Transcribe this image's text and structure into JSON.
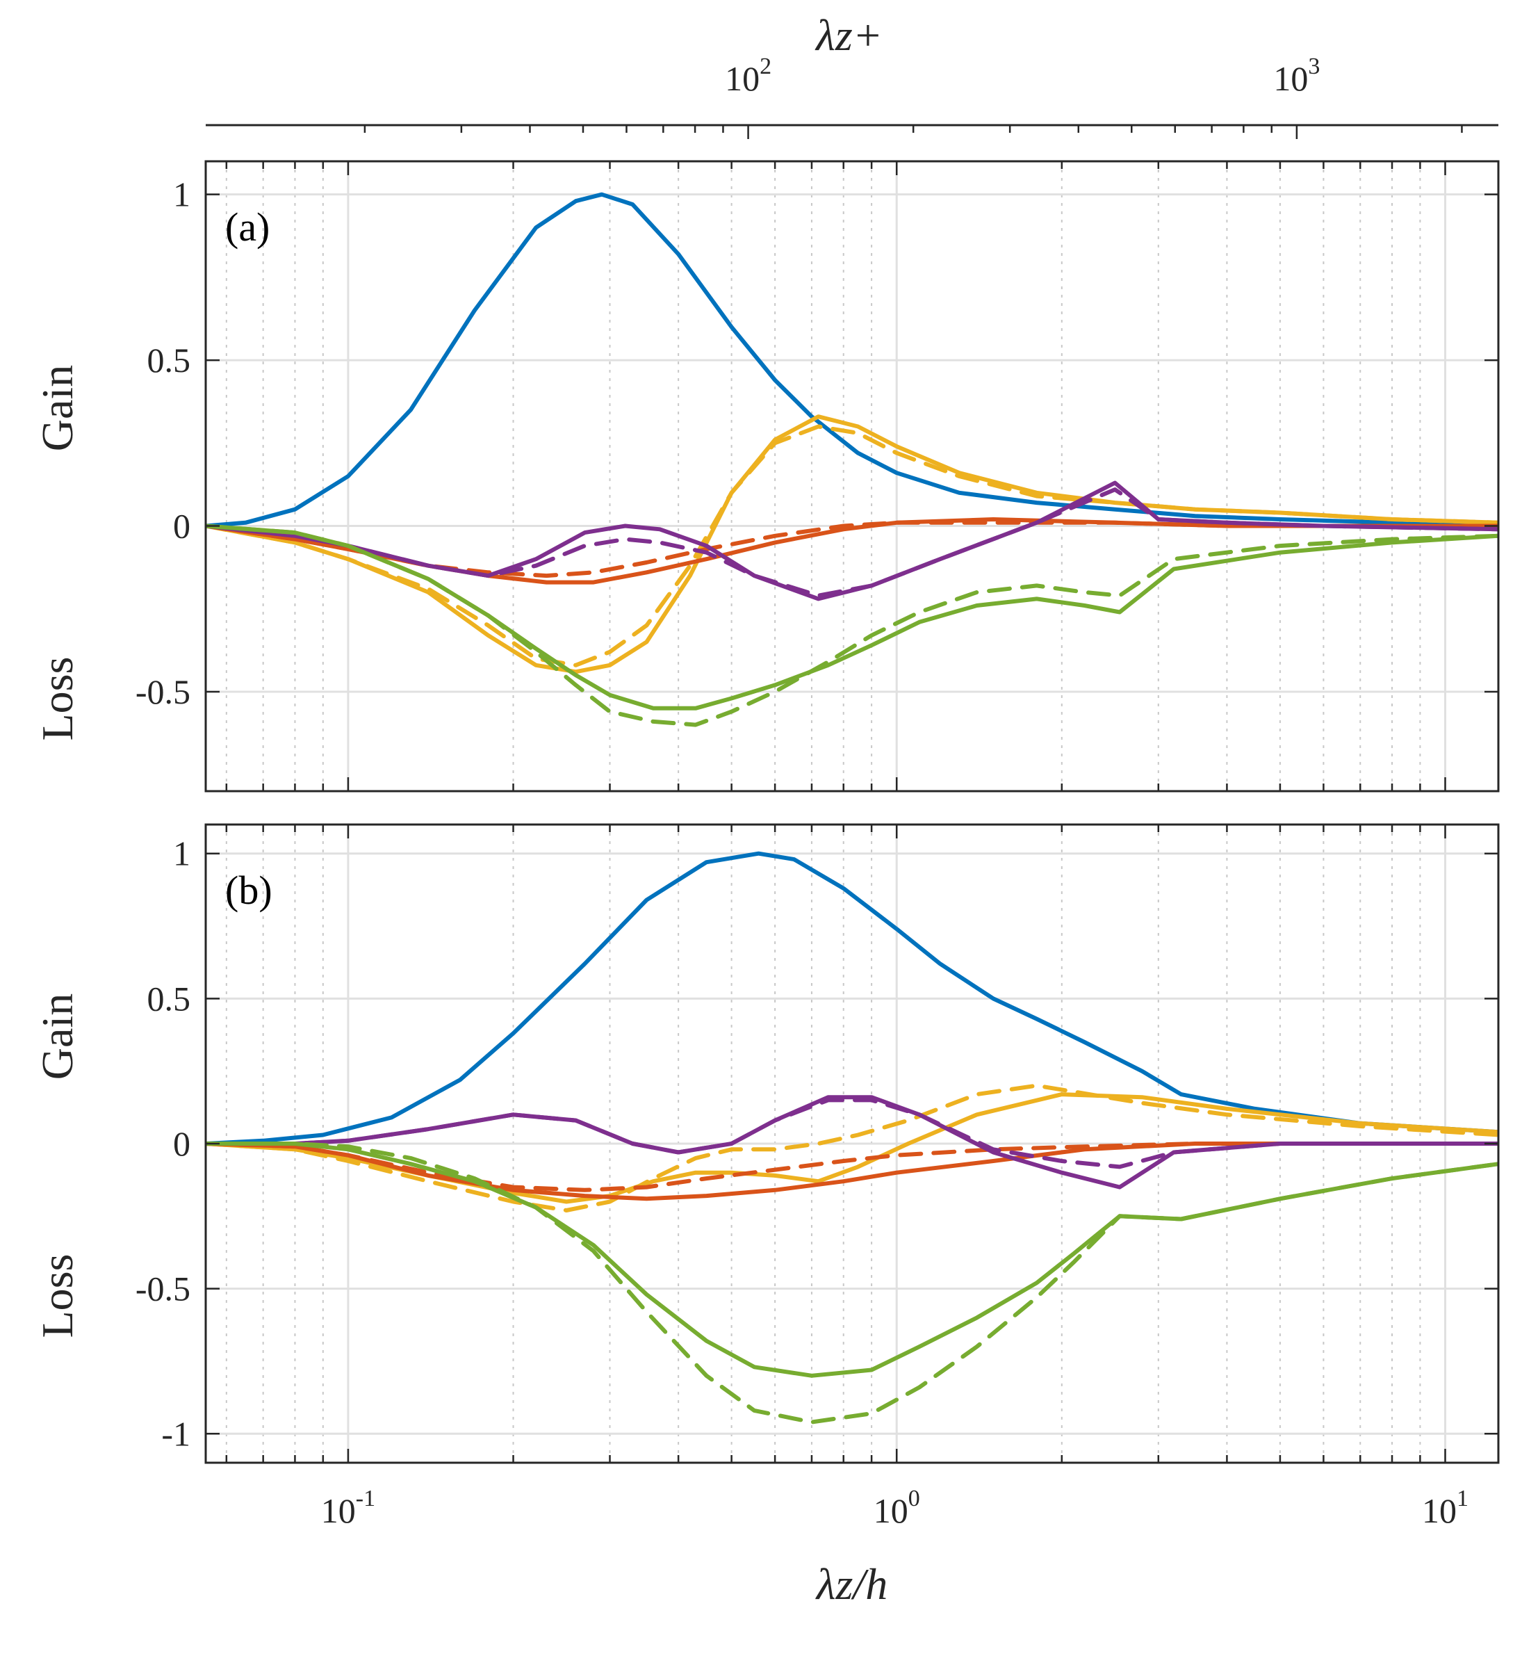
{
  "chart_data": {
    "type": "line",
    "x_scale": "log",
    "xlim": [
      0.055,
      12.5
    ],
    "x_top_label": "λz+",
    "x_top_ticks": [
      {
        "value": 100,
        "base": "10",
        "exp": "2"
      },
      {
        "value": 1000,
        "base": "10",
        "exp": "3"
      }
    ],
    "x_top_scale_factor": 186.5,
    "xlabel": "λz/h",
    "x_bottom_ticks": [
      {
        "value": 0.1,
        "base": "10",
        "exp": "-1"
      },
      {
        "value": 1,
        "base": "10",
        "exp": "0"
      },
      {
        "value": 10,
        "base": "10",
        "exp": "1"
      }
    ],
    "ylabel_top": "Gain",
    "ylabel_bottom": "Loss",
    "grid": true,
    "colors": {
      "blue": "#0072BD",
      "orange": "#EDB120",
      "red": "#D95319",
      "purple": "#7E2F8E",
      "green": "#77AC30"
    },
    "panels": [
      {
        "label": "(a)",
        "ylim": [
          -0.8,
          1.1
        ],
        "yticks": [
          1,
          0.5,
          0,
          -0.5
        ],
        "ytick_labels": [
          "1",
          "0.5",
          "0",
          "-0.5"
        ],
        "series": [
          {
            "name": "blue-solid",
            "color": "blue",
            "dash": false,
            "x": [
              0.055,
              0.065,
              0.08,
              0.1,
              0.13,
              0.17,
              0.22,
              0.26,
              0.29,
              0.33,
              0.4,
              0.5,
              0.6,
              0.7,
              0.85,
              1.0,
              1.3,
              1.8,
              2.5,
              3.5,
              5,
              8,
              12.5
            ],
            "y": [
              0.0,
              0.01,
              0.05,
              0.15,
              0.35,
              0.65,
              0.9,
              0.98,
              1.0,
              0.97,
              0.82,
              0.6,
              0.44,
              0.33,
              0.22,
              0.16,
              0.1,
              0.07,
              0.05,
              0.03,
              0.02,
              0.01,
              0.0
            ]
          },
          {
            "name": "orange-solid",
            "color": "orange",
            "dash": false,
            "x": [
              0.055,
              0.08,
              0.1,
              0.14,
              0.18,
              0.22,
              0.26,
              0.3,
              0.35,
              0.42,
              0.5,
              0.6,
              0.72,
              0.85,
              1.0,
              1.3,
              1.8,
              2.5,
              3.5,
              5,
              8,
              12.5
            ],
            "y": [
              0.0,
              -0.05,
              -0.1,
              -0.2,
              -0.33,
              -0.42,
              -0.44,
              -0.42,
              -0.35,
              -0.15,
              0.1,
              0.26,
              0.33,
              0.3,
              0.24,
              0.16,
              0.1,
              0.07,
              0.05,
              0.04,
              0.02,
              0.01
            ]
          },
          {
            "name": "orange-dashed",
            "color": "orange",
            "dash": true,
            "x": [
              0.055,
              0.08,
              0.1,
              0.14,
              0.18,
              0.22,
              0.26,
              0.3,
              0.35,
              0.42,
              0.5,
              0.6,
              0.72,
              0.85,
              1.0,
              1.3,
              1.8,
              2.5,
              3.5,
              5,
              8,
              12.5
            ],
            "y": [
              0.0,
              -0.05,
              -0.1,
              -0.19,
              -0.3,
              -0.4,
              -0.42,
              -0.38,
              -0.3,
              -0.12,
              0.1,
              0.25,
              0.3,
              0.28,
              0.22,
              0.15,
              0.09,
              0.07,
              0.05,
              0.04,
              0.02,
              0.01
            ]
          },
          {
            "name": "red-solid",
            "color": "red",
            "dash": false,
            "x": [
              0.055,
              0.08,
              0.1,
              0.14,
              0.18,
              0.23,
              0.28,
              0.35,
              0.45,
              0.6,
              0.8,
              1.0,
              1.5,
              2.5,
              4,
              12.5
            ],
            "y": [
              0.0,
              -0.04,
              -0.07,
              -0.12,
              -0.15,
              -0.17,
              -0.17,
              -0.14,
              -0.1,
              -0.05,
              -0.01,
              0.01,
              0.02,
              0.01,
              0.0,
              0.0
            ]
          },
          {
            "name": "red-dashed",
            "color": "red",
            "dash": true,
            "x": [
              0.055,
              0.08,
              0.1,
              0.14,
              0.18,
              0.23,
              0.28,
              0.35,
              0.45,
              0.6,
              0.8,
              1.0,
              1.5,
              2.5,
              4,
              12.5
            ],
            "y": [
              0.0,
              -0.04,
              -0.07,
              -0.12,
              -0.14,
              -0.15,
              -0.14,
              -0.11,
              -0.07,
              -0.03,
              0.0,
              0.01,
              0.01,
              0.01,
              0.0,
              0.0
            ]
          },
          {
            "name": "purple-solid",
            "color": "purple",
            "dash": false,
            "x": [
              0.055,
              0.08,
              0.1,
              0.14,
              0.18,
              0.22,
              0.27,
              0.32,
              0.37,
              0.45,
              0.55,
              0.72,
              0.9,
              1.2,
              1.8,
              2.5,
              3.0,
              4,
              6,
              12.5
            ],
            "y": [
              0.0,
              -0.03,
              -0.06,
              -0.12,
              -0.15,
              -0.1,
              -0.02,
              0.0,
              -0.01,
              -0.06,
              -0.15,
              -0.22,
              -0.18,
              -0.1,
              0.01,
              0.13,
              0.02,
              0.01,
              0.0,
              -0.01
            ]
          },
          {
            "name": "purple-dashed",
            "color": "purple",
            "dash": true,
            "x": [
              0.055,
              0.08,
              0.1,
              0.14,
              0.18,
              0.22,
              0.27,
              0.32,
              0.37,
              0.45,
              0.55,
              0.72,
              0.9,
              1.2,
              1.8,
              2.5,
              3.0,
              4,
              6,
              12.5
            ],
            "y": [
              0.0,
              -0.03,
              -0.06,
              -0.12,
              -0.15,
              -0.12,
              -0.06,
              -0.04,
              -0.05,
              -0.08,
              -0.15,
              -0.21,
              -0.18,
              -0.1,
              0.01,
              0.11,
              0.02,
              0.01,
              0.0,
              -0.01
            ]
          },
          {
            "name": "green-solid",
            "color": "green",
            "dash": false,
            "x": [
              0.055,
              0.08,
              0.1,
              0.14,
              0.18,
              0.22,
              0.26,
              0.3,
              0.36,
              0.43,
              0.5,
              0.6,
              0.75,
              0.9,
              1.1,
              1.4,
              1.8,
              2.2,
              2.55,
              3.2,
              5,
              8,
              12.5
            ],
            "y": [
              0.0,
              -0.02,
              -0.06,
              -0.16,
              -0.27,
              -0.37,
              -0.45,
              -0.51,
              -0.55,
              -0.55,
              -0.52,
              -0.48,
              -0.42,
              -0.36,
              -0.29,
              -0.24,
              -0.22,
              -0.24,
              -0.26,
              -0.13,
              -0.08,
              -0.05,
              -0.03
            ]
          },
          {
            "name": "green-dashed",
            "color": "green",
            "dash": true,
            "x": [
              0.055,
              0.08,
              0.1,
              0.14,
              0.18,
              0.22,
              0.26,
              0.3,
              0.36,
              0.43,
              0.5,
              0.6,
              0.75,
              0.9,
              1.1,
              1.4,
              1.8,
              2.2,
              2.55,
              3.2,
              5,
              8,
              12.5
            ],
            "y": [
              0.0,
              -0.02,
              -0.06,
              -0.16,
              -0.27,
              -0.38,
              -0.48,
              -0.56,
              -0.59,
              -0.6,
              -0.56,
              -0.5,
              -0.41,
              -0.33,
              -0.26,
              -0.2,
              -0.18,
              -0.2,
              -0.21,
              -0.1,
              -0.06,
              -0.04,
              -0.03
            ]
          }
        ]
      },
      {
        "label": "(b)",
        "ylim": [
          -1.1,
          1.1
        ],
        "yticks": [
          1,
          0.5,
          0,
          -0.5,
          -1
        ],
        "ytick_labels": [
          "1",
          "0.5",
          "0",
          "-0.5",
          "-1"
        ],
        "series": [
          {
            "name": "blue-solid",
            "color": "blue",
            "dash": false,
            "x": [
              0.055,
              0.07,
              0.09,
              0.12,
              0.16,
              0.2,
              0.27,
              0.35,
              0.45,
              0.56,
              0.65,
              0.8,
              1.0,
              1.2,
              1.5,
              1.8,
              2.2,
              2.8,
              3.3,
              4.5,
              7,
              12.5
            ],
            "y": [
              0.0,
              0.01,
              0.03,
              0.09,
              0.22,
              0.38,
              0.62,
              0.84,
              0.97,
              1.0,
              0.98,
              0.88,
              0.74,
              0.62,
              0.5,
              0.43,
              0.35,
              0.25,
              0.17,
              0.12,
              0.07,
              0.04
            ]
          },
          {
            "name": "orange-solid",
            "color": "orange",
            "dash": false,
            "x": [
              0.055,
              0.08,
              0.1,
              0.14,
              0.2,
              0.25,
              0.3,
              0.36,
              0.43,
              0.5,
              0.6,
              0.72,
              0.85,
              1.05,
              1.4,
              2.0,
              2.8,
              4,
              7,
              12.5
            ],
            "y": [
              0.0,
              -0.02,
              -0.05,
              -0.11,
              -0.17,
              -0.2,
              -0.18,
              -0.13,
              -0.1,
              -0.1,
              -0.11,
              -0.13,
              -0.08,
              0.0,
              0.1,
              0.17,
              0.16,
              0.12,
              0.07,
              0.04
            ]
          },
          {
            "name": "orange-dashed",
            "color": "orange",
            "dash": true,
            "x": [
              0.055,
              0.08,
              0.1,
              0.14,
              0.2,
              0.25,
              0.3,
              0.36,
              0.43,
              0.5,
              0.6,
              0.72,
              0.85,
              1.05,
              1.4,
              1.8,
              2.8,
              4,
              7,
              12.5
            ],
            "y": [
              0.0,
              -0.02,
              -0.06,
              -0.13,
              -0.2,
              -0.23,
              -0.2,
              -0.12,
              -0.05,
              -0.02,
              -0.02,
              0.0,
              0.03,
              0.08,
              0.17,
              0.2,
              0.14,
              0.1,
              0.06,
              0.03
            ]
          },
          {
            "name": "red-solid",
            "color": "red",
            "dash": false,
            "x": [
              0.055,
              0.08,
              0.1,
              0.14,
              0.2,
              0.27,
              0.35,
              0.45,
              0.6,
              0.8,
              1.0,
              1.5,
              2.2,
              3.5,
              6,
              12.5
            ],
            "y": [
              0.0,
              -0.01,
              -0.04,
              -0.11,
              -0.16,
              -0.18,
              -0.19,
              -0.18,
              -0.16,
              -0.13,
              -0.1,
              -0.06,
              -0.02,
              0.0,
              0.0,
              0.0
            ]
          },
          {
            "name": "red-dashed",
            "color": "red",
            "dash": true,
            "x": [
              0.055,
              0.08,
              0.1,
              0.14,
              0.2,
              0.27,
              0.35,
              0.45,
              0.6,
              0.8,
              1.0,
              1.5,
              2.2,
              3.5,
              6,
              12.5
            ],
            "y": [
              0.0,
              -0.01,
              -0.04,
              -0.1,
              -0.15,
              -0.16,
              -0.15,
              -0.12,
              -0.09,
              -0.06,
              -0.04,
              -0.02,
              -0.01,
              0.0,
              0.0,
              0.0
            ]
          },
          {
            "name": "purple-solid",
            "color": "purple",
            "dash": false,
            "x": [
              0.055,
              0.08,
              0.1,
              0.14,
              0.2,
              0.26,
              0.33,
              0.4,
              0.5,
              0.6,
              0.75,
              0.9,
              1.1,
              1.5,
              2.0,
              2.55,
              3.2,
              5,
              12.5
            ],
            "y": [
              0.0,
              0.0,
              0.01,
              0.05,
              0.1,
              0.08,
              0.0,
              -0.03,
              0.0,
              0.08,
              0.16,
              0.16,
              0.1,
              -0.03,
              -0.1,
              -0.15,
              -0.03,
              0.0,
              0.0
            ]
          },
          {
            "name": "purple-dashed",
            "color": "purple",
            "dash": true,
            "x": [
              0.055,
              0.08,
              0.1,
              0.14,
              0.2,
              0.26,
              0.33,
              0.4,
              0.5,
              0.6,
              0.75,
              0.9,
              1.1,
              1.5,
              2.0,
              2.55,
              3.2,
              5,
              12.5
            ],
            "y": [
              0.0,
              0.0,
              0.01,
              0.05,
              0.1,
              0.08,
              0.0,
              -0.03,
              0.0,
              0.08,
              0.15,
              0.15,
              0.1,
              -0.02,
              -0.06,
              -0.08,
              -0.03,
              0.0,
              0.0
            ]
          },
          {
            "name": "green-solid",
            "color": "green",
            "dash": false,
            "x": [
              0.055,
              0.08,
              0.1,
              0.13,
              0.17,
              0.22,
              0.28,
              0.35,
              0.45,
              0.55,
              0.7,
              0.9,
              1.1,
              1.4,
              1.8,
              2.1,
              2.55,
              3.3,
              5,
              8,
              12.5
            ],
            "y": [
              0.0,
              0.0,
              -0.02,
              -0.07,
              -0.13,
              -0.22,
              -0.35,
              -0.52,
              -0.68,
              -0.77,
              -0.8,
              -0.78,
              -0.7,
              -0.6,
              -0.48,
              -0.38,
              -0.25,
              -0.26,
              -0.19,
              -0.12,
              -0.07
            ]
          },
          {
            "name": "green-dashed",
            "color": "green",
            "dash": true,
            "x": [
              0.055,
              0.08,
              0.1,
              0.13,
              0.17,
              0.22,
              0.28,
              0.35,
              0.45,
              0.55,
              0.7,
              0.9,
              1.1,
              1.4,
              1.8,
              2.1,
              2.55,
              3.3,
              5,
              8,
              12.5
            ],
            "y": [
              0.0,
              0.0,
              -0.01,
              -0.05,
              -0.12,
              -0.22,
              -0.37,
              -0.58,
              -0.8,
              -0.92,
              -0.96,
              -0.93,
              -0.84,
              -0.7,
              -0.53,
              -0.41,
              -0.25,
              -0.26,
              -0.19,
              -0.12,
              -0.07
            ]
          }
        ]
      }
    ]
  }
}
